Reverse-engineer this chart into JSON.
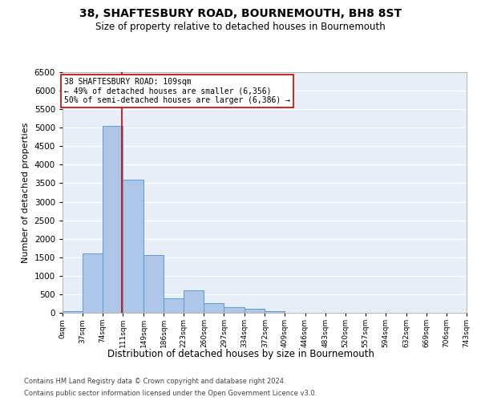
{
  "title": "38, SHAFTESBURY ROAD, BOURNEMOUTH, BH8 8ST",
  "subtitle": "Size of property relative to detached houses in Bournemouth",
  "xlabel": "Distribution of detached houses by size in Bournemouth",
  "ylabel": "Number of detached properties",
  "property_size": 109,
  "bin_edges": [
    0,
    37,
    74,
    111,
    149,
    186,
    223,
    260,
    297,
    334,
    372,
    409,
    446,
    483,
    520,
    557,
    594,
    632,
    669,
    706,
    743
  ],
  "bin_labels": [
    "0sqm",
    "37sqm",
    "74sqm",
    "111sqm",
    "149sqm",
    "186sqm",
    "223sqm",
    "260sqm",
    "297sqm",
    "334sqm",
    "372sqm",
    "409sqm",
    "446sqm",
    "483sqm",
    "520sqm",
    "557sqm",
    "594sqm",
    "632sqm",
    "669sqm",
    "706sqm",
    "743sqm"
  ],
  "bar_heights": [
    50,
    1600,
    5050,
    3600,
    1550,
    400,
    600,
    250,
    150,
    100,
    50,
    0,
    0,
    0,
    0,
    0,
    0,
    0,
    0,
    0
  ],
  "bar_color": "#aec6e8",
  "bar_edge_color": "#5b9bd5",
  "vline_color": "#cc0000",
  "vline_x": 109,
  "annotation_text": "38 SHAFTESBURY ROAD: 109sqm\n← 49% of detached houses are smaller (6,356)\n50% of semi-detached houses are larger (6,386) →",
  "annotation_box_color": "#ffffff",
  "annotation_box_edge": "#cc0000",
  "ylim": [
    0,
    6500
  ],
  "yticks": [
    0,
    500,
    1000,
    1500,
    2000,
    2500,
    3000,
    3500,
    4000,
    4500,
    5000,
    5500,
    6000,
    6500
  ],
  "background_color": "#e8eef7",
  "footer1": "Contains HM Land Registry data © Crown copyright and database right 2024.",
  "footer2": "Contains public sector information licensed under the Open Government Licence v3.0.",
  "title_fontsize": 10,
  "subtitle_fontsize": 8.5
}
